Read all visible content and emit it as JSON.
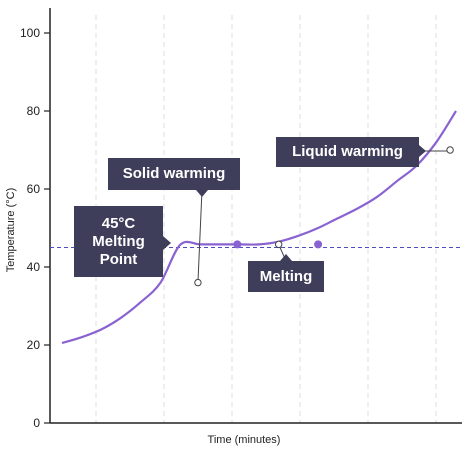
{
  "chart_data": {
    "type": "line",
    "title": "",
    "xlabel": "Time (minutes)",
    "ylabel": "Temperature (°C)",
    "ylim": [
      0,
      100
    ],
    "yticks": [
      0,
      20,
      40,
      60,
      80,
      100
    ],
    "grid": "vertical dashed",
    "reference_line": {
      "y": 45,
      "style": "dashed"
    },
    "colors": {
      "curve": "#8a63d2",
      "reference": "#4d4dbd",
      "callout": "#3e3e5a",
      "marker": "#8a63d2"
    },
    "series": [
      {
        "x": [
          0,
          5,
          10,
          15,
          20,
          25,
          30,
          35,
          40,
          45,
          50,
          55,
          60,
          65,
          70,
          75,
          80,
          85,
          90,
          95,
          100
        ],
        "y": [
          20.5,
          22,
          24,
          27,
          31,
          36,
          45.7,
          45.8,
          45.8,
          45.8,
          45.8,
          46.5,
          48,
          50,
          52.5,
          55,
          58,
          62,
          66,
          72,
          80
        ]
      }
    ],
    "annotations": [
      {
        "id": "solid",
        "text": "Solid warming",
        "x": 34.5,
        "y": 36
      },
      {
        "id": "melting",
        "text": "Melting",
        "x": 55,
        "y": 45.8
      },
      {
        "id": "liquid",
        "text": "Liquid warming",
        "x": 98.5,
        "y": 70
      },
      {
        "id": "mp",
        "text": "45°C\nMelting\nPoint",
        "y": 45
      }
    ],
    "filled_markers_x": [
      44.5,
      65
    ]
  }
}
